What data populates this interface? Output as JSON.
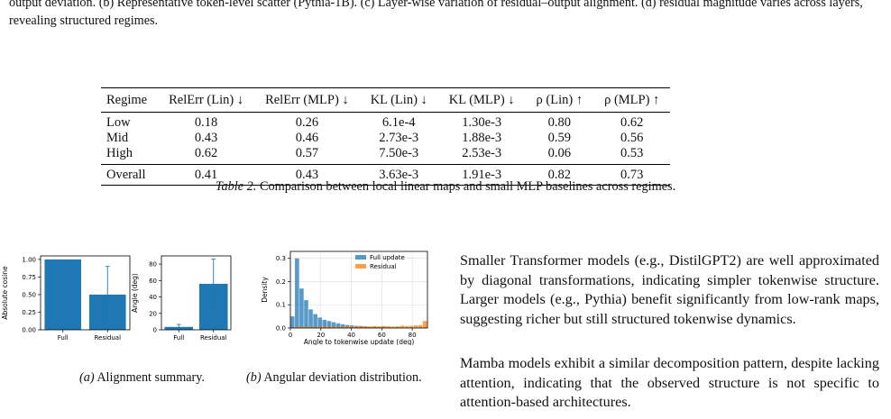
{
  "top_caption": "output deviation. (b) Representative token-level scatter (Pythia-1B). (c) Layer-wise variation of residual–output alignment. (d) residual magnitude varies across layers, revealing structured regimes.",
  "table": {
    "headers": [
      "Regime",
      "RelErr (Lin) ↓",
      "RelErr (MLP) ↓",
      "KL (Lin) ↓",
      "KL (MLP) ↓",
      "ρ (Lin) ↑",
      "ρ (MLP) ↑"
    ],
    "rows": [
      [
        "Low",
        "0.18",
        "0.26",
        "6.1e-4",
        "1.30e-3",
        "0.80",
        "0.62"
      ],
      [
        "Mid",
        "0.43",
        "0.46",
        "2.73e-3",
        "1.88e-3",
        "0.59",
        "0.56"
      ],
      [
        "High",
        "0.62",
        "0.57",
        "7.50e-3",
        "2.53e-3",
        "0.06",
        "0.53"
      ]
    ],
    "overall": [
      "Overall",
      "0.41",
      "0.43",
      "3.63e-3",
      "1.91e-3",
      "0.82",
      "0.73"
    ],
    "caption_label": "Table 2.",
    "caption_text": "Comparison between local linear maps and small MLP baselines across regimes."
  },
  "chart_data": [
    {
      "type": "bar",
      "panel": "a-left",
      "categories": [
        "Full",
        "Residual"
      ],
      "values": [
        1.0,
        0.5
      ],
      "error": [
        0.0,
        0.4
      ],
      "ylabel": "Absolute cosine",
      "yticks": [
        "0.00",
        "0.25",
        "0.50",
        "0.75",
        "1.00"
      ],
      "ylim": [
        0,
        1.05
      ],
      "color": "#1f77b4"
    },
    {
      "type": "bar",
      "panel": "a-right",
      "categories": [
        "Full",
        "Residual"
      ],
      "values": [
        3.5,
        56
      ],
      "error": [
        3,
        30
      ],
      "ylabel": "Angle (deg)",
      "yticks": [
        "0",
        "20",
        "40",
        "60",
        "80"
      ],
      "ylim": [
        0,
        90
      ],
      "color": "#1f77b4"
    },
    {
      "type": "histogram",
      "panel": "b",
      "xlabel": "Angle to tokenwise update (deg)",
      "ylabel": "Density",
      "xticks": [
        "0",
        "20",
        "40",
        "60",
        "80"
      ],
      "yticks": [
        "0.0",
        "0.1",
        "0.2",
        "0.3"
      ],
      "xlim": [
        0,
        90
      ],
      "ylim": [
        0,
        0.33
      ],
      "grid": true,
      "legend": "top-right",
      "series": [
        {
          "name": "Full update",
          "color": "#1f77b4",
          "bin_width": 0.9,
          "values": [
            0.05,
            0.3,
            0.17,
            0.12,
            0.08,
            0.06,
            0.045,
            0.035,
            0.03,
            0.025,
            0.02,
            0.016,
            0.013,
            0.011,
            0.009,
            0.008,
            0.007,
            0.006,
            0.005,
            0.004,
            0.004,
            0.003,
            0.003,
            0.003,
            0.002,
            0.002,
            0.002,
            0.002,
            0.001,
            0.001
          ]
        },
        {
          "name": "Residual",
          "color": "#ff7f0e",
          "bin_width": 0.9,
          "values": [
            0.003,
            0.005,
            0.006,
            0.004,
            0.007,
            0.005,
            0.006,
            0.008,
            0.006,
            0.007,
            0.005,
            0.006,
            0.008,
            0.007,
            0.006,
            0.009,
            0.007,
            0.006,
            0.008,
            0.007,
            0.009,
            0.008,
            0.006,
            0.007,
            0.01,
            0.008,
            0.009,
            0.011,
            0.012,
            0.03
          ]
        }
      ]
    }
  ],
  "subcaptions": [
    {
      "label": "(a)",
      "text": "Alignment summary."
    },
    {
      "label": "(b)",
      "text": "Angular deviation distribution."
    }
  ],
  "paragraphs": [
    "Smaller Transformer models (e.g., DistilGPT2) are well approximated by diagonal transformations, indicating simpler tokenwise structure. Larger models (e.g., Pythia) benefit significantly from low-rank maps, suggesting richer but still structured tokenwise dynamics.",
    "Mamba models exhibit a similar decomposition pattern, despite lacking attention, indicating that the observed structure is not specific to attention-based architectures."
  ]
}
